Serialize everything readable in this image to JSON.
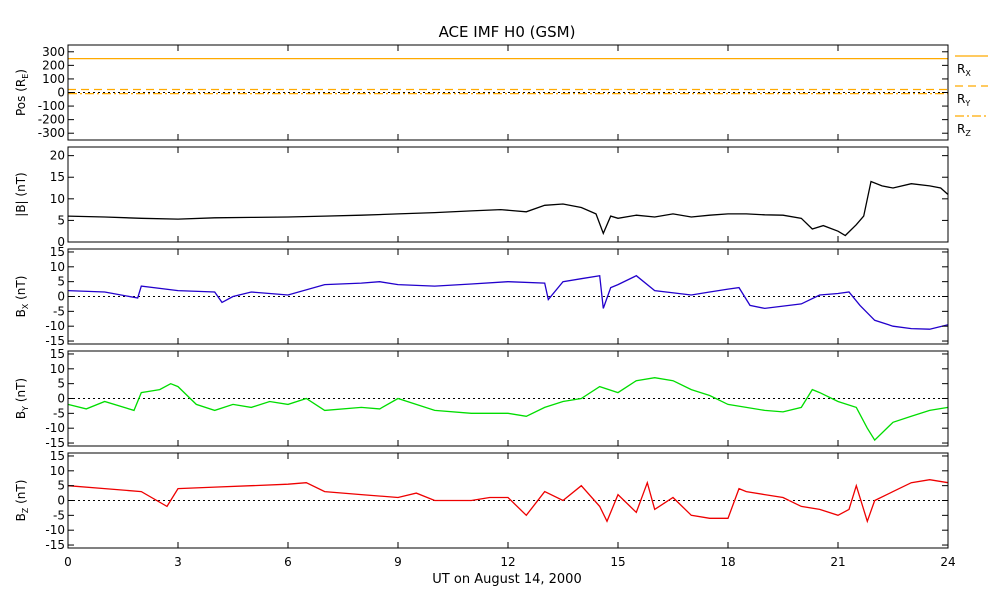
{
  "chart_data": {
    "type": "line",
    "title": "ACE IMF H0 (GSM)",
    "xlabel": "UT on August 14, 2000",
    "xlim": [
      0,
      24
    ],
    "xticks": [
      "0",
      "3",
      "6",
      "9",
      "12",
      "15",
      "18",
      "21",
      "24"
    ],
    "xtick_values": [
      0,
      3,
      6,
      9,
      12,
      15,
      18,
      21,
      24
    ],
    "colors": {
      "orange": "#ffaa00",
      "black": "#000000",
      "blue": "#2200cc",
      "green": "#00dd00",
      "red": "#ee0000"
    },
    "panels": [
      {
        "id": "pos",
        "ylabel_main": "Pos (R",
        "ylabel_sub": "E",
        "ylabel_end": ")",
        "ylim": [
          -350,
          350
        ],
        "yticks": [
          "300",
          "200",
          "100",
          "0",
          "-100",
          "-200",
          "-300"
        ],
        "ytick_values": [
          300,
          200,
          100,
          0,
          -100,
          -200,
          -300
        ],
        "zero_line": true,
        "legend": [
          {
            "main": "R",
            "sub": "X",
            "style": "solid"
          },
          {
            "main": "R",
            "sub": "Y",
            "style": "dashed"
          },
          {
            "main": "R",
            "sub": "Z",
            "style": "dashdot"
          }
        ],
        "series": [
          {
            "name": "RX",
            "color": "#ffaa00",
            "style": "solid",
            "x": [
              0,
              24
            ],
            "y": [
              250,
              250
            ]
          },
          {
            "name": "RY",
            "color": "#ffaa00",
            "style": "dashed",
            "x": [
              0,
              24
            ],
            "y": [
              22,
              22
            ]
          },
          {
            "name": "RZ",
            "color": "#ffaa00",
            "style": "dashdot",
            "x": [
              0,
              24
            ],
            "y": [
              -8,
              -8
            ]
          }
        ]
      },
      {
        "id": "bmag",
        "ylabel_main": "|B| (nT)",
        "ylabel_sub": "",
        "ylabel_end": "",
        "ylim": [
          0,
          22
        ],
        "yticks": [
          "20",
          "15",
          "10",
          "5",
          "0"
        ],
        "ytick_values": [
          20,
          15,
          10,
          5,
          0
        ],
        "zero_line": false,
        "series": [
          {
            "name": "|B|",
            "color": "#000000",
            "style": "solid",
            "x": [
              0,
              1,
              2,
              3,
              4,
              5,
              6,
              7,
              8,
              9,
              10,
              11,
              11.8,
              12.5,
              13,
              13.5,
              14,
              14.4,
              14.6,
              14.8,
              15,
              15.5,
              16,
              16.5,
              17,
              17.5,
              18,
              18.5,
              19,
              19.5,
              20,
              20.3,
              20.6,
              21,
              21.2,
              21.5,
              21.7,
              21.9,
              22.2,
              22.5,
              23,
              23.5,
              23.8,
              24
            ],
            "y": [
              6,
              5.8,
              5.5,
              5.3,
              5.6,
              5.7,
              5.8,
              6,
              6.2,
              6.5,
              6.8,
              7.2,
              7.5,
              7,
              8.5,
              8.8,
              8,
              6.5,
              2,
              6,
              5.5,
              6.2,
              5.8,
              6.5,
              5.8,
              6.2,
              6.5,
              6.5,
              6.3,
              6.2,
              5.5,
              3,
              3.8,
              2.5,
              1.5,
              4,
              6,
              14,
              13,
              12.5,
              13.5,
              13,
              12.5,
              11
            ]
          }
        ]
      },
      {
        "id": "bx",
        "ylabel_main": "B",
        "ylabel_sub": "X",
        "ylabel_end": " (nT)",
        "ylim": [
          -16,
          16
        ],
        "yticks": [
          "15",
          "10",
          "5",
          "0",
          "-5",
          "-10",
          "-15"
        ],
        "ytick_values": [
          15,
          10,
          5,
          0,
          -5,
          -10,
          -15
        ],
        "zero_line": true,
        "series": [
          {
            "name": "BX",
            "color": "#2200cc",
            "style": "solid",
            "x": [
              0,
              1,
              1.9,
              2,
              3,
              4,
              4.2,
              4.5,
              5,
              5.5,
              6,
              7,
              8,
              8.5,
              9,
              10,
              11,
              12,
              13,
              13.1,
              13.5,
              14,
              14.5,
              14.6,
              14.8,
              15,
              15.5,
              16,
              17,
              17.5,
              18,
              18.3,
              18.6,
              19,
              20,
              20.5,
              21,
              21.3,
              21.6,
              22,
              22.5,
              23,
              23.5,
              24
            ],
            "y": [
              2,
              1.5,
              -0.5,
              3.5,
              2,
              1.5,
              -2,
              0,
              1.5,
              1,
              0.5,
              4,
              4.5,
              5,
              4,
              3.5,
              4.2,
              5,
              4.5,
              -1,
              5,
              6,
              7,
              -4,
              3,
              4,
              7,
              2,
              0.5,
              1.5,
              2.5,
              3,
              -3,
              -4,
              -2.5,
              0.5,
              1,
              1.5,
              -3,
              -8,
              -10,
              -10.8,
              -11,
              -9.5
            ]
          }
        ]
      },
      {
        "id": "by",
        "ylabel_main": "B",
        "ylabel_sub": "Y",
        "ylabel_end": " (nT)",
        "ylim": [
          -16,
          16
        ],
        "yticks": [
          "15",
          "10",
          "5",
          "0",
          "-5",
          "-10",
          "-15"
        ],
        "ytick_values": [
          15,
          10,
          5,
          0,
          -5,
          -10,
          -15
        ],
        "zero_line": true,
        "series": [
          {
            "name": "BY",
            "color": "#00dd00",
            "style": "solid",
            "x": [
              0,
              0.5,
              1,
              1.8,
              2,
              2.5,
              2.8,
              3,
              3.5,
              4,
              4.5,
              5,
              5.5,
              6,
              6.5,
              7,
              8,
              8.5,
              9,
              10,
              11,
              12,
              12.5,
              13,
              13.5,
              14,
              14.5,
              15,
              15.5,
              16,
              16.5,
              17,
              17.5,
              18,
              18.5,
              19,
              19.5,
              20,
              20.3,
              20.5,
              21,
              21.5,
              21.8,
              22,
              22.5,
              23,
              23.5,
              24
            ],
            "y": [
              -2,
              -3.5,
              -1,
              -4,
              2,
              3,
              5,
              4,
              -2,
              -4,
              -2,
              -3,
              -1,
              -2,
              0,
              -4,
              -3,
              -3.5,
              0,
              -4,
              -5,
              -5,
              -6,
              -3,
              -1,
              0,
              4,
              2,
              6,
              7,
              6,
              3,
              1,
              -2,
              -3,
              -4,
              -4.5,
              -3,
              3,
              2,
              -1,
              -3,
              -10,
              -14,
              -8,
              -6,
              -4,
              -3
            ]
          }
        ]
      },
      {
        "id": "bz",
        "ylabel_main": "B",
        "ylabel_sub": "Z",
        "ylabel_end": " (nT)",
        "ylim": [
          -16,
          16
        ],
        "yticks": [
          "15",
          "10",
          "5",
          "0",
          "-5",
          "-10",
          "-15"
        ],
        "ytick_values": [
          15,
          10,
          5,
          0,
          -5,
          -10,
          -15
        ],
        "zero_line": true,
        "series": [
          {
            "name": "BZ",
            "color": "#ee0000",
            "style": "solid",
            "x": [
              0,
              1,
              2,
              2.7,
              3,
              4,
              5,
              6,
              6.5,
              7,
              8,
              9,
              9.5,
              10,
              11,
              11.5,
              12,
              12.5,
              13,
              13.5,
              14,
              14.5,
              14.7,
              15,
              15.5,
              15.8,
              16,
              16.5,
              17,
              17.5,
              18,
              18.3,
              18.5,
              19,
              19.5,
              20,
              20.5,
              21,
              21.3,
              21.5,
              21.8,
              22,
              22.5,
              23,
              23.5,
              24
            ],
            "y": [
              5,
              4,
              3,
              -2,
              4,
              4.5,
              5,
              5.5,
              6,
              3,
              2,
              1,
              2.5,
              0,
              0,
              1,
              1,
              -5,
              3,
              0,
              5,
              -2,
              -7,
              2,
              -4,
              6,
              -3,
              1,
              -5,
              -6,
              -6,
              4,
              3,
              2,
              1,
              -2,
              -3,
              -5,
              -3,
              5,
              -7,
              0,
              3,
              6,
              7,
              6
            ]
          }
        ]
      }
    ]
  }
}
